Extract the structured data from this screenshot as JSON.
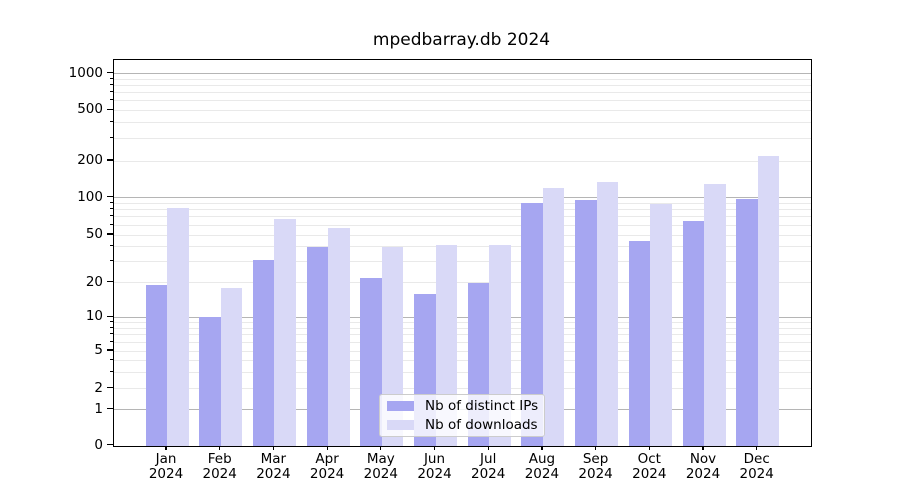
{
  "chart_data": {
    "type": "bar",
    "title": "mpedbarray.db 2024",
    "categories": [
      "Jan",
      "Feb",
      "Mar",
      "Apr",
      "May",
      "Jun",
      "Jul",
      "Aug",
      "Sep",
      "Oct",
      "Nov",
      "Dec"
    ],
    "category_year_label": "2024",
    "series": [
      {
        "name": "Nb of distinct IPs",
        "color": "#a6a6f1",
        "values": [
          19,
          10,
          31,
          40,
          22,
          16,
          20,
          91,
          95,
          45,
          65,
          97
        ]
      },
      {
        "name": "Nb of downloads",
        "color": "#d9d9f7",
        "values": [
          83,
          18,
          67,
          57,
          40,
          41,
          41,
          120,
          135,
          89,
          130,
          220
        ]
      }
    ],
    "y_axis": {
      "scale": "log",
      "ticks": [
        0,
        1,
        2,
        5,
        10,
        20,
        50,
        100,
        200,
        500,
        1000
      ],
      "tick_labels": [
        "0",
        "1",
        "2",
        "5",
        "10",
        "20",
        "50",
        "100",
        "200",
        "500",
        "1000"
      ],
      "minor_gridlines": [
        3,
        4,
        6,
        7,
        8,
        9,
        30,
        40,
        60,
        70,
        80,
        90,
        300,
        400,
        600,
        700,
        800,
        900
      ]
    },
    "legend": {
      "position": "lower center",
      "entries": [
        "Nb of distinct IPs",
        "Nb of downloads"
      ]
    },
    "grid": true,
    "colors": {
      "background": "#ffffff",
      "spine": "#000000",
      "major_grid": "#b5b5b5",
      "minor_grid": "#e9e9e9",
      "text": "#000000"
    }
  }
}
